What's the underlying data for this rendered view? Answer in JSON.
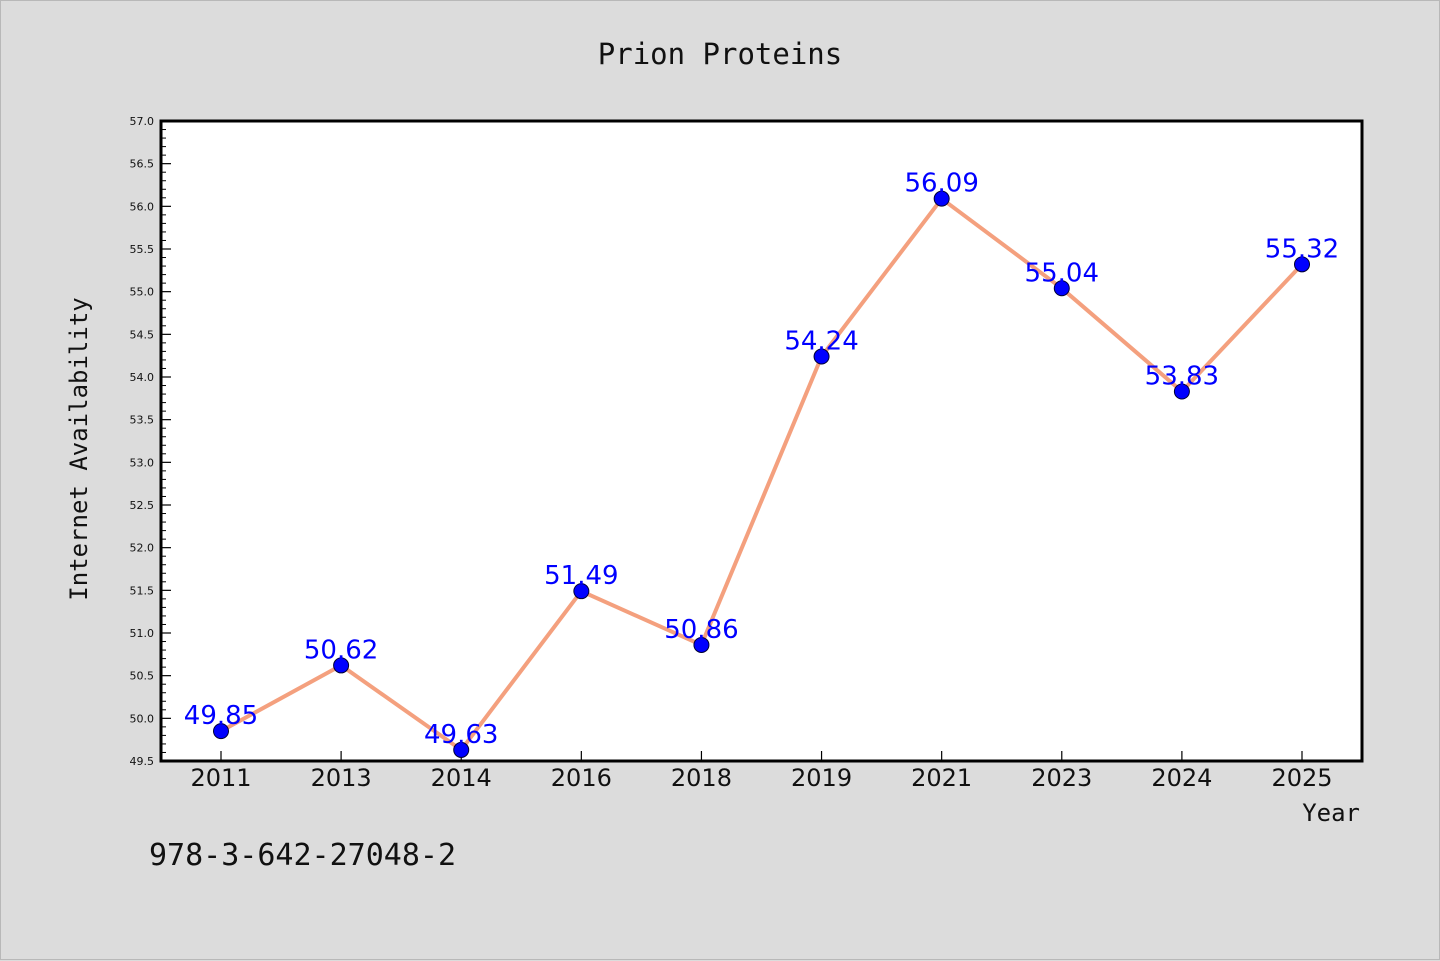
{
  "chart_data": {
    "type": "line",
    "title": "Prion Proteins",
    "xlabel": "Year",
    "ylabel": "Internet Availability",
    "categories": [
      "2011",
      "2013",
      "2014",
      "2016",
      "2018",
      "2019",
      "2021",
      "2023",
      "2024",
      "2025"
    ],
    "series": [
      {
        "values": [
          49.85,
          50.62,
          49.63,
          51.49,
          50.86,
          54.24,
          56.09,
          55.04,
          53.83,
          55.32
        ],
        "labels": [
          "49.85",
          "50.62",
          "49.63",
          "51.49",
          "50.86",
          "54.24",
          "56.09",
          "55.04",
          "53.83",
          "55.32"
        ]
      }
    ],
    "ylim": [
      49.5,
      57.0
    ],
    "y_major_step": 0.5,
    "y_tick_labels": [
      "49.5",
      "50.0",
      "50.5",
      "51.0",
      "51.5",
      "52.0",
      "52.5",
      "53.0",
      "53.5",
      "54.0",
      "54.5",
      "55.0",
      "55.5",
      "56.0",
      "56.5",
      "57.0"
    ],
    "grid": false,
    "line_color": "#f4a07e",
    "marker_color": "#0000ff",
    "label_color": "#0000ff"
  },
  "footer_text": "978-3-642-27048-2"
}
